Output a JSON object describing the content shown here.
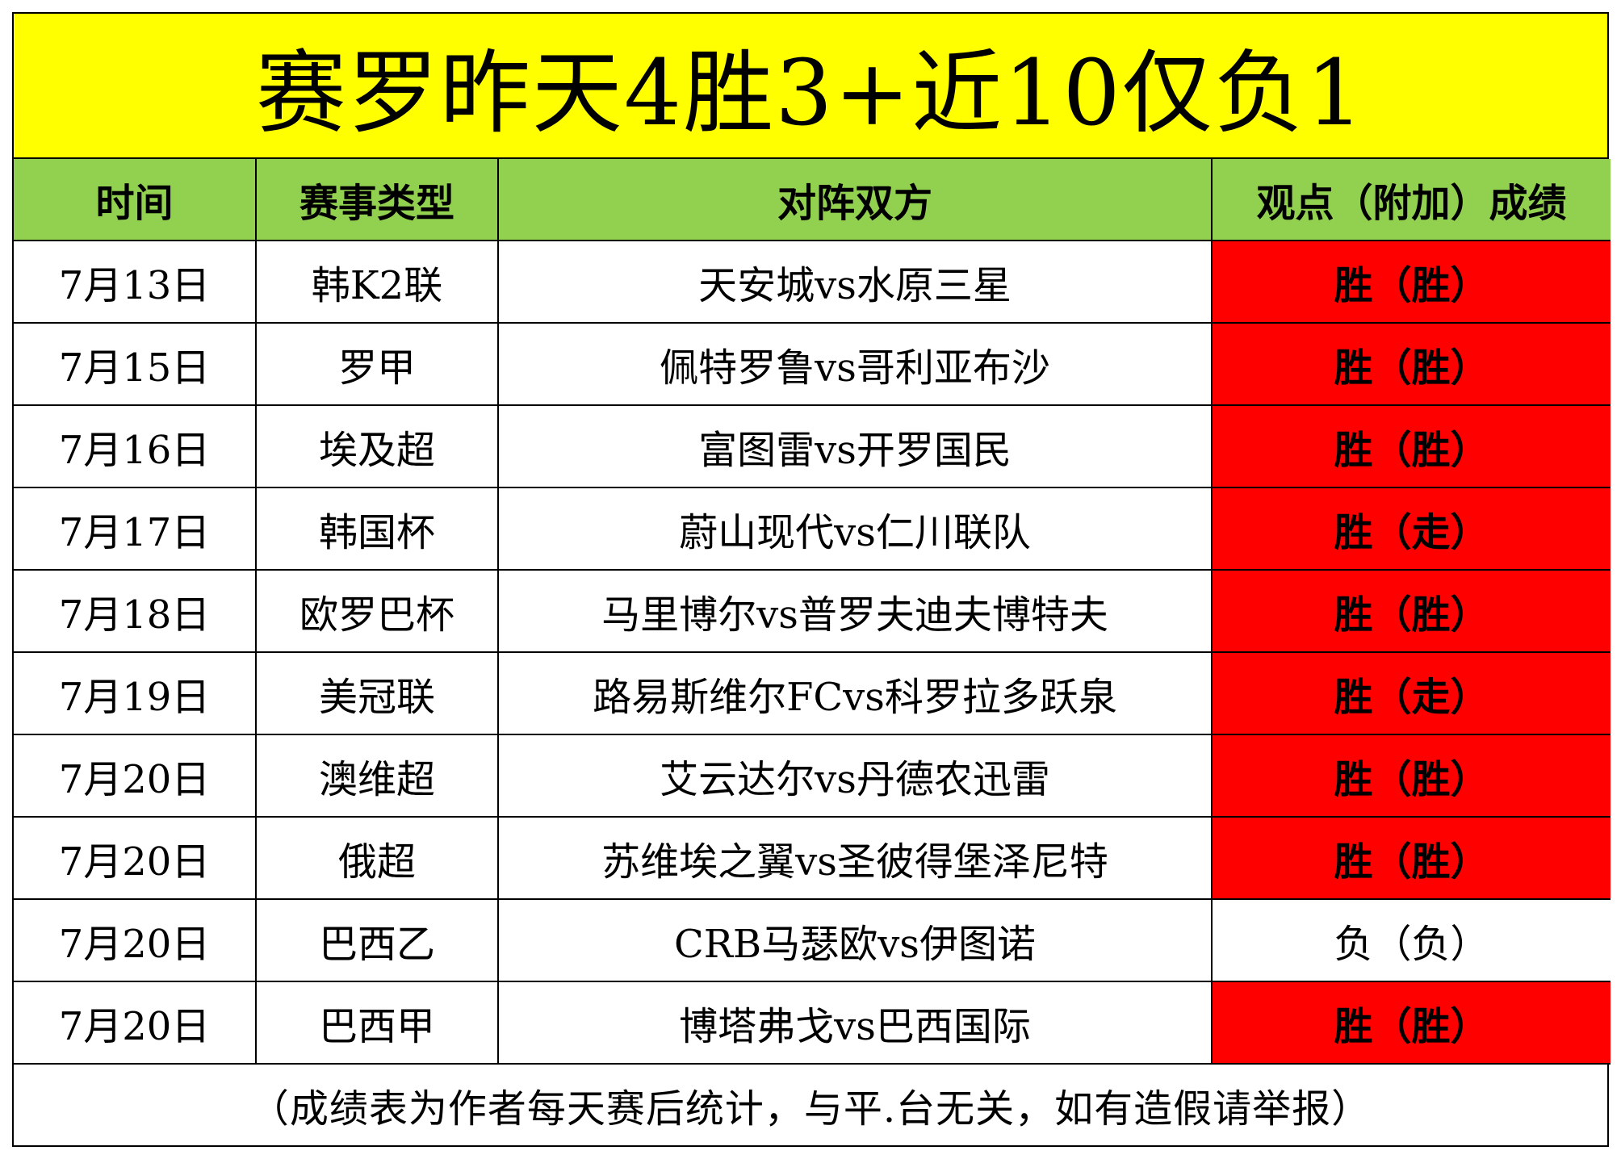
{
  "title": "赛罗昨天4胜3+近10仅负1",
  "colors": {
    "title_background": "#ffff00",
    "header_background": "#92d050",
    "win_cell": "#ff0000",
    "loss_cell": "#ffffff"
  },
  "table": {
    "headers": [
      "时间",
      "赛事类型",
      "对阵双方",
      "观点（附加）成绩"
    ],
    "rows": [
      {
        "date": "7月13日",
        "league": "韩K2联",
        "match": "天安城vs水原三星",
        "result": "胜（胜）",
        "status": "win"
      },
      {
        "date": "7月15日",
        "league": "罗甲",
        "match": "佩特罗鲁vs哥利亚布沙",
        "result": "胜（胜）",
        "status": "win"
      },
      {
        "date": "7月16日",
        "league": "埃及超",
        "match": "富图雷vs开罗国民",
        "result": "胜（胜）",
        "status": "win"
      },
      {
        "date": "7月17日",
        "league": "韩国杯",
        "match": "蔚山现代vs仁川联队",
        "result": "胜（走）",
        "status": "win"
      },
      {
        "date": "7月18日",
        "league": "欧罗巴杯",
        "match": "马里博尔vs普罗夫迪夫博特夫",
        "result": "胜（胜）",
        "status": "win"
      },
      {
        "date": "7月19日",
        "league": "美冠联",
        "match": "路易斯维尔FCvs科罗拉多跃泉",
        "result": "胜（走）",
        "status": "win"
      },
      {
        "date": "7月20日",
        "league": "澳维超",
        "match": "艾云达尔vs丹德农迅雷",
        "result": "胜（胜）",
        "status": "win"
      },
      {
        "date": "7月20日",
        "league": "俄超",
        "match": "苏维埃之翼vs圣彼得堡泽尼特",
        "result": "胜（胜）",
        "status": "win"
      },
      {
        "date": "7月20日",
        "league": "巴西乙",
        "match": "CRB马瑟欧vs伊图诺",
        "result": "负（负）",
        "status": "loss"
      },
      {
        "date": "7月20日",
        "league": "巴西甲",
        "match": "博塔弗戈vs巴西国际",
        "result": "胜（胜）",
        "status": "win"
      }
    ]
  },
  "footer": "（成绩表为作者每天赛后统计，与平.台无关，如有造假请举报）"
}
